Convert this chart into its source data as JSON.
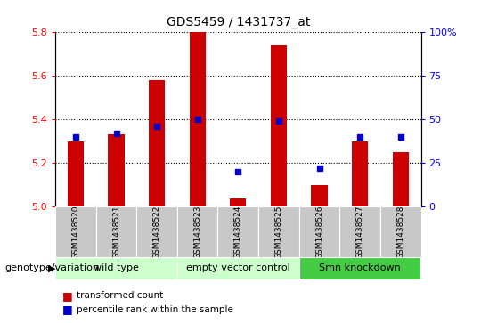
{
  "title": "GDS5459 / 1431737_at",
  "samples": [
    "GSM1438520",
    "GSM1438521",
    "GSM1438522",
    "GSM1438523",
    "GSM1438524",
    "GSM1438525",
    "GSM1438526",
    "GSM1438527",
    "GSM1438528"
  ],
  "bar_values": [
    5.3,
    5.33,
    5.58,
    5.8,
    5.04,
    5.74,
    5.1,
    5.3,
    5.25
  ],
  "dot_values_pct": [
    40,
    42,
    46,
    50,
    20,
    49,
    22,
    40,
    40
  ],
  "ylim_left": [
    5.0,
    5.8
  ],
  "ylim_right": [
    0,
    100
  ],
  "yticks_left": [
    5.0,
    5.2,
    5.4,
    5.6,
    5.8
  ],
  "yticks_right": [
    0,
    25,
    50,
    75,
    100
  ],
  "bar_color": "#cc0000",
  "dot_color": "#0000cc",
  "bar_width": 0.4,
  "group_defs": [
    [
      0,
      2,
      "wild type",
      "#ccffcc"
    ],
    [
      3,
      5,
      "empty vector control",
      "#ccffcc"
    ],
    [
      6,
      8,
      "Smn knockdown",
      "#44cc44"
    ]
  ],
  "xlabel_group": "genotype/variation",
  "legend_bar": "transformed count",
  "legend_dot": "percentile rank within the sample",
  "sample_bg": "#c8c8c8",
  "plot_bg": "#ffffff"
}
